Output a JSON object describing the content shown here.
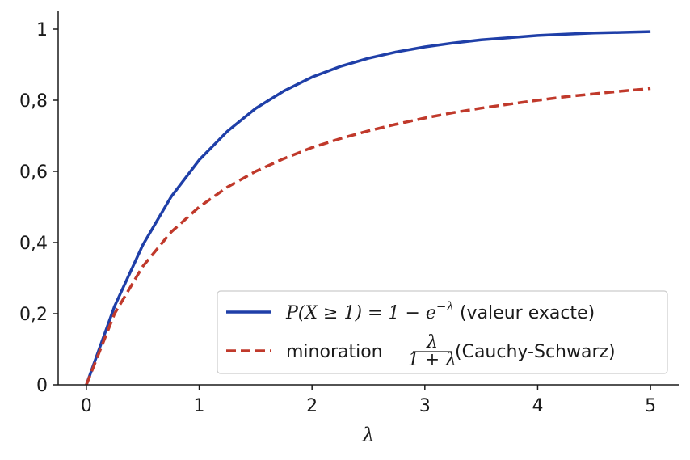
{
  "chart_data": {
    "type": "line",
    "xlabel": "λ",
    "ylabel": "",
    "xlim": [
      -0.25,
      5.25
    ],
    "ylim": [
      0,
      1.05
    ],
    "x_ticks": [
      0,
      1,
      2,
      3,
      4,
      5
    ],
    "x_tick_labels": [
      "0",
      "1",
      "2",
      "3",
      "4",
      "5"
    ],
    "y_ticks": [
      0,
      0.2,
      0.4,
      0.6,
      0.8,
      1
    ],
    "y_tick_labels": [
      "0",
      "0,2",
      "0,4",
      "0,6",
      "0,8",
      "1"
    ],
    "grid": false,
    "legend_position": "bottom-right",
    "x": [
      0,
      0.25,
      0.5,
      0.75,
      1,
      1.25,
      1.5,
      1.75,
      2,
      2.25,
      2.5,
      2.75,
      3,
      3.25,
      3.5,
      3.75,
      4,
      4.25,
      4.5,
      4.75,
      5
    ],
    "series": [
      {
        "name": "P(X ≥ 1) = 1 − e^(−λ) (valeur exacte)",
        "legend_math": "P(X ≥ 1) = 1 − e",
        "legend_sup": "−λ",
        "legend_suffix": " (valeur exacte)",
        "color": "#1f3fa8",
        "style": "solid",
        "values": [
          0,
          0.221,
          0.393,
          0.528,
          0.632,
          0.713,
          0.777,
          0.826,
          0.865,
          0.895,
          0.918,
          0.936,
          0.95,
          0.961,
          0.97,
          0.976,
          0.982,
          0.986,
          0.989,
          0.991,
          0.993
        ]
      },
      {
        "name": "minoration λ/(1+λ) (Cauchy-Schwarz)",
        "legend_prefix": "minoration ",
        "legend_num": "λ",
        "legend_den": "1 + λ",
        "legend_suffix": " (Cauchy-Schwarz)",
        "color": "#c0392b",
        "style": "dashed",
        "values": [
          0,
          0.2,
          0.333,
          0.429,
          0.5,
          0.556,
          0.6,
          0.636,
          0.667,
          0.692,
          0.714,
          0.733,
          0.75,
          0.765,
          0.778,
          0.789,
          0.8,
          0.81,
          0.818,
          0.826,
          0.833
        ]
      }
    ]
  }
}
